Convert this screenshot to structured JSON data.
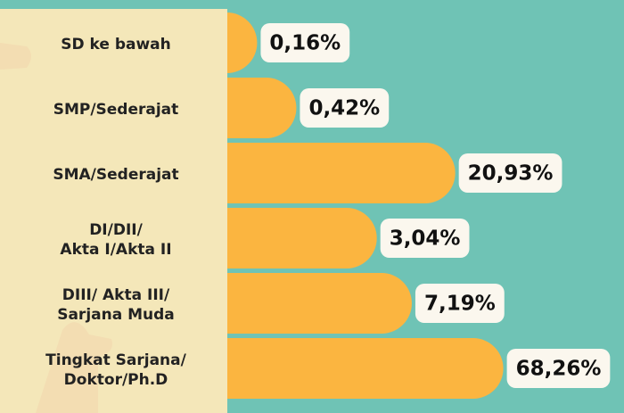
{
  "chart_data": {
    "type": "bar",
    "orientation": "horizontal",
    "log_scale": true,
    "categories": [
      "SD ke bawah",
      "SMP/Sederajat",
      "SMA/Sederajat",
      "DI/DII/\nAkta I/Akta II",
      "DIII/ Akta III/\nSarjana Muda",
      "Tingkat Sarjana/\nDoktor/Ph.D"
    ],
    "values": [
      0.16,
      0.42,
      20.93,
      3.04,
      7.19,
      68.26
    ],
    "value_labels": [
      "0,16%",
      "0,42%",
      "20,93%",
      "3,04%",
      "7,19%",
      "68,26%"
    ],
    "color": "#fbb540"
  }
}
